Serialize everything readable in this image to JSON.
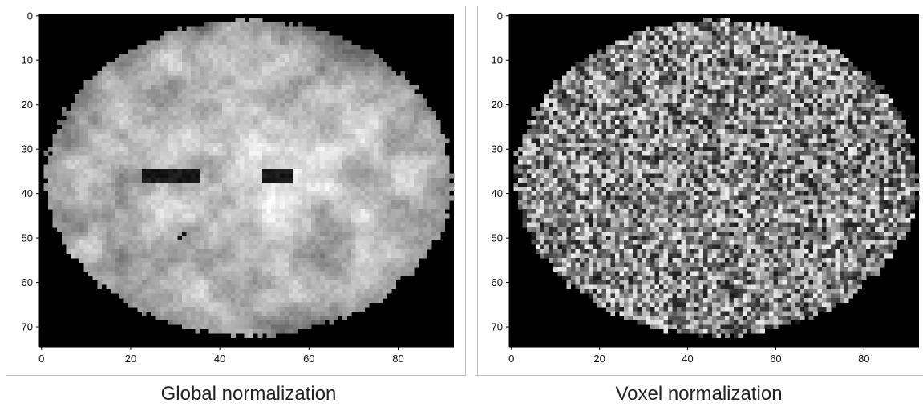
{
  "panels": [
    {
      "caption": "Global normalization",
      "x_ticks": [
        "0",
        "20",
        "40",
        "60",
        "80"
      ],
      "y_ticks": [
        "0",
        "10",
        "20",
        "30",
        "40",
        "50",
        "60",
        "70"
      ],
      "style": "smooth"
    },
    {
      "caption": "Voxel normalization",
      "x_ticks": [
        "0",
        "20",
        "40",
        "60",
        "80"
      ],
      "y_ticks": [
        "0",
        "10",
        "20",
        "30",
        "40",
        "50",
        "60",
        "70"
      ],
      "style": "noise"
    }
  ],
  "image_grid": {
    "cols": 93,
    "rows": 75
  },
  "colors": {
    "background": "#000000",
    "axis": "#000000",
    "frame": "#bdbdbd"
  }
}
